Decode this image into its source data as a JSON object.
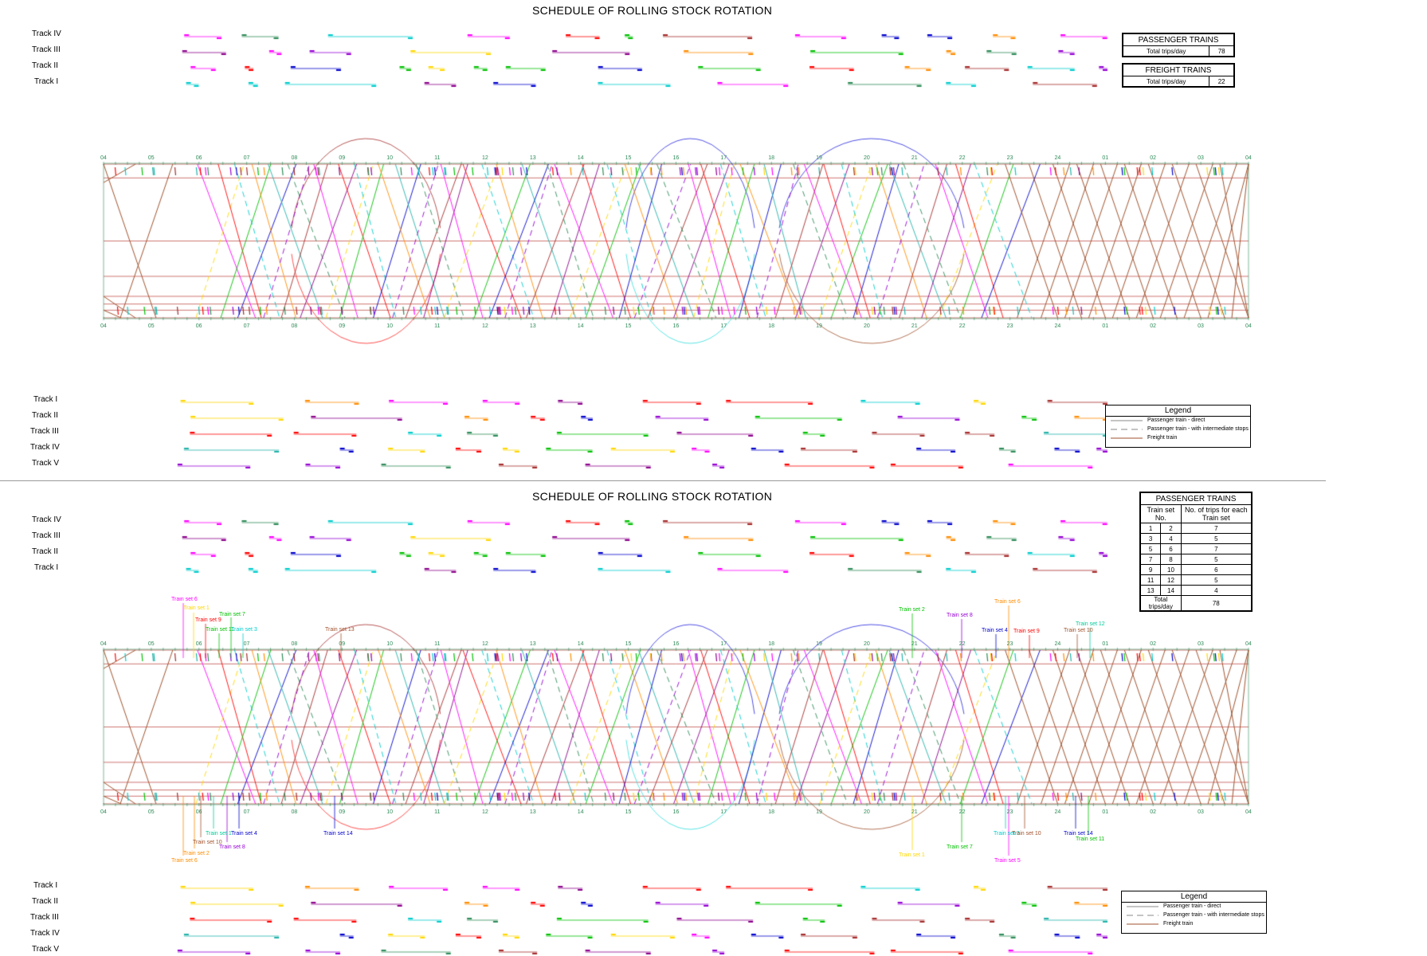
{
  "panels": [
    {
      "title": "SCHEDULE OF ROLLING STOCK ROTATION",
      "tracks_top": [
        "Track IV",
        "Track III",
        "Track II",
        "Track I"
      ],
      "tracks_bottom": [
        "Track I",
        "Track II",
        "Track III",
        "Track IV",
        "Track V"
      ],
      "hours_top": [
        "04",
        "05",
        "06",
        "07",
        "08",
        "09",
        "10",
        "11",
        "12",
        "13",
        "14",
        "15",
        "16",
        "17",
        "18",
        "19",
        "20",
        "21",
        "22",
        "23",
        "24",
        "01",
        "02",
        "03",
        "04"
      ],
      "hours_bottom": [
        "04",
        "05",
        "06",
        "07",
        "08",
        "09",
        "10",
        "11",
        "12",
        "13",
        "14",
        "15",
        "16",
        "17",
        "18",
        "19",
        "20",
        "21",
        "22",
        "23",
        "24",
        "01",
        "02",
        "03",
        "04"
      ],
      "passenger_box": {
        "title": "PASSENGER TRAINS",
        "label": "Total trips/day",
        "value": "78"
      },
      "freight_box": {
        "title": "FREIGHT TRAINS",
        "label": "Total trips/day",
        "value": "22"
      },
      "legend": {
        "title": "Legend",
        "items": [
          "Passenger train - direct",
          "Passenger train - with intermediate stops",
          "Freight train"
        ]
      }
    },
    {
      "title": "SCHEDULE OF ROLLING STOCK ROTATION",
      "tracks_top": [
        "Track IV",
        "Track III",
        "Track II",
        "Track I"
      ],
      "tracks_bottom": [
        "Track I",
        "Track II",
        "Track III",
        "Track IV",
        "Track V"
      ],
      "hours_top": [
        "04",
        "05",
        "06",
        "07",
        "08",
        "09",
        "10",
        "11",
        "12",
        "13",
        "14",
        "15",
        "16",
        "17",
        "18",
        "19",
        "20",
        "21",
        "22",
        "23",
        "24",
        "01",
        "02",
        "03",
        "04"
      ],
      "hours_bottom": [
        "04",
        "05",
        "06",
        "07",
        "08",
        "09",
        "10",
        "11",
        "12",
        "13",
        "14",
        "15",
        "16",
        "17",
        "18",
        "19",
        "20",
        "21",
        "22",
        "23",
        "24",
        "01",
        "02",
        "03",
        "04"
      ],
      "trainsets_box": {
        "title": "PASSENGER TRAINS",
        "col1": "Train set No.",
        "col2": "No. of trips for each Train set",
        "rows": [
          [
            "1",
            "2",
            "7"
          ],
          [
            "3",
            "4",
            "5"
          ],
          [
            "5",
            "6",
            "7"
          ],
          [
            "7",
            "8",
            "5"
          ],
          [
            "9",
            "10",
            "6"
          ],
          [
            "11",
            "12",
            "5"
          ],
          [
            "13",
            "14",
            "4"
          ]
        ],
        "total_label": "Total trips/day",
        "total_value": "78"
      },
      "trainset_labels_top": [
        "Train set 6",
        "Train set 1",
        "Train set 9",
        "Train set 7",
        "Train set 11",
        "Train set 3",
        "Train set 13",
        "Train set 2",
        "Train set 8",
        "Train set 6",
        "Train set 4",
        "Train set 9",
        "Train set 10",
        "Train set 12"
      ],
      "trainset_labels_bottom": [
        "Train set 1",
        "Train set 4",
        "Train set 10",
        "Train set 8",
        "Train set 2",
        "Train set 6",
        "Train set 14",
        "Train set 1",
        "Train set 7",
        "Train set 3",
        "Train set 10",
        "Train set 5",
        "Train set 14",
        "Train set 11"
      ],
      "legend": {
        "title": "Legend",
        "items": [
          "Passenger train - direct",
          "Passenger train - with intermediate stops",
          "Freight train"
        ]
      }
    }
  ],
  "colors": {
    "grid": "#c0504d",
    "hours": "#2e8b57",
    "freight": "#a0522d",
    "passenger": [
      "#ff00ff",
      "#ffd700",
      "#ff0000",
      "#00c000",
      "#00cccc",
      "#0000cc",
      "#ff8c00",
      "#9400d3",
      "#20b2aa",
      "#a52a2a",
      "#2e8b57",
      "#8b008b"
    ]
  }
}
